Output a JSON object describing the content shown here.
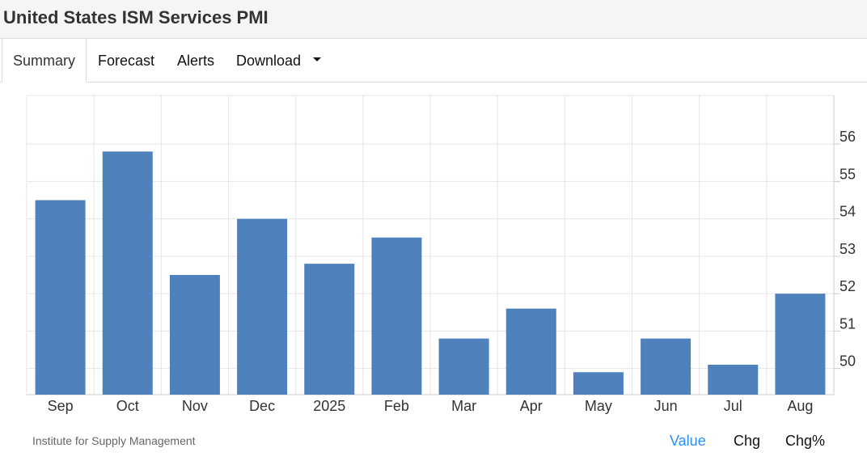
{
  "page_title": "United States ISM Services PMI",
  "tabs": [
    {
      "label": "Summary",
      "active": true
    },
    {
      "label": "Forecast"
    },
    {
      "label": "Alerts"
    },
    {
      "label": "Download"
    }
  ],
  "source": "Institute for Supply Management",
  "view_modes": [
    {
      "label": "Value",
      "selected": true
    },
    {
      "label": "Chg"
    },
    {
      "label": "Chg%"
    }
  ],
  "colors": {
    "bar": "#4f81bd",
    "selected_mode": "#2a8ff7",
    "grid": "#e6e6e6"
  },
  "chart_data": {
    "type": "bar",
    "categories": [
      "Sep",
      "Oct",
      "Nov",
      "Dec",
      "2025",
      "Feb",
      "Mar",
      "Apr",
      "May",
      "Jun",
      "Jul",
      "Aug"
    ],
    "values": [
      54.5,
      55.8,
      52.5,
      54.0,
      52.8,
      53.5,
      50.8,
      51.6,
      49.9,
      50.8,
      50.1,
      52.0
    ],
    "yticks": [
      50,
      51,
      52,
      53,
      54,
      55,
      56
    ],
    "ylim": [
      49.3,
      57.3
    ],
    "y_axis_side": "right",
    "grid": true,
    "title": "",
    "xlabel": "",
    "ylabel": ""
  }
}
